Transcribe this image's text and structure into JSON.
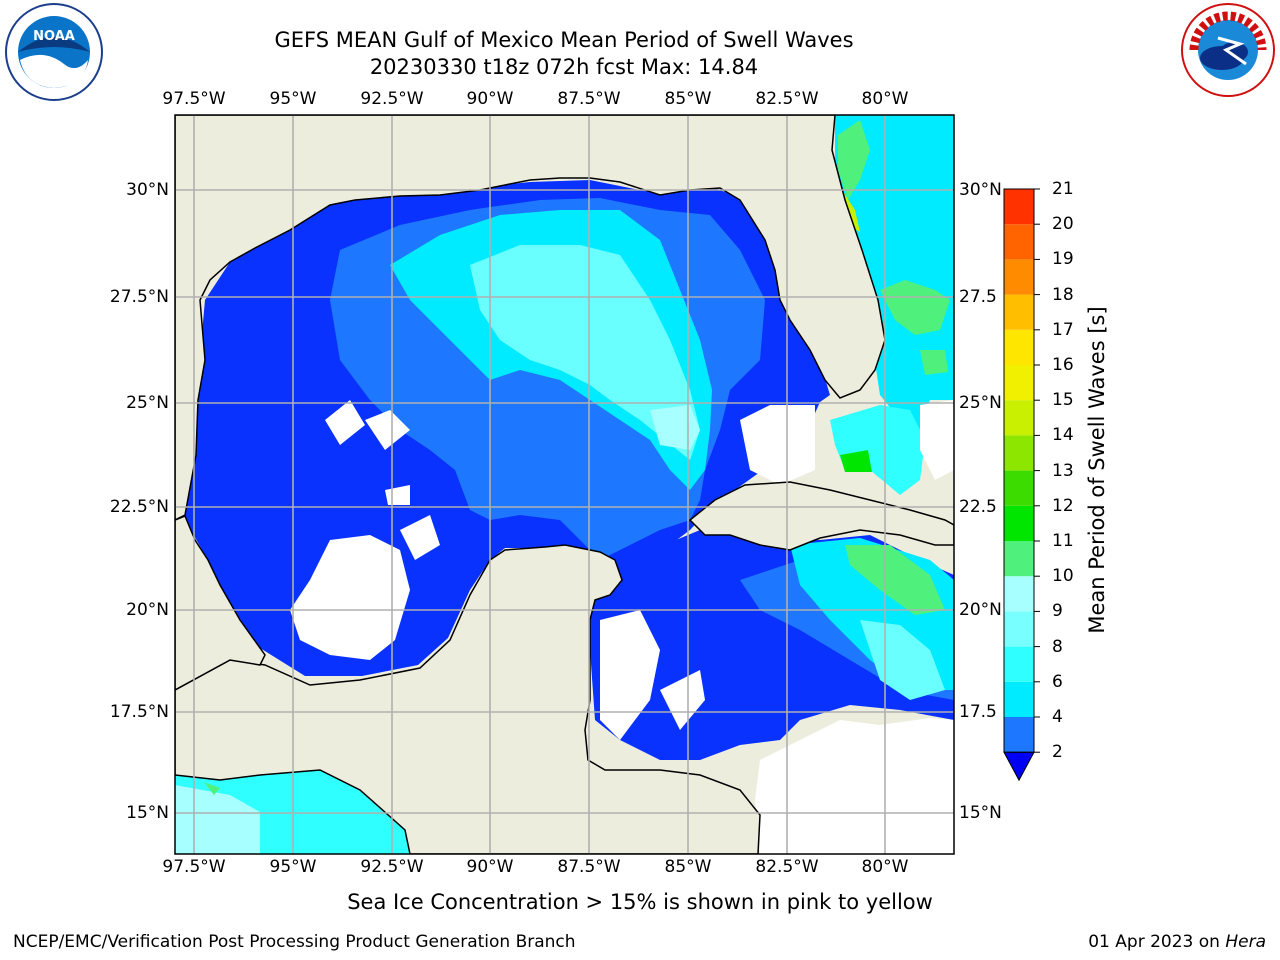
{
  "title": "GEFS MEAN Gulf of Mexico Mean Period of Swell Waves",
  "subtitle": "20230330 t18z 072h fcst   Max: 14.84",
  "lon_labels": [
    "97.5°W",
    "95°W",
    "92.5°W",
    "90°W",
    "87.5°W",
    "85°W",
    "82.5°W",
    "80°W"
  ],
  "lat_labels_left": [
    "30°N",
    "27.5°N",
    "25°N",
    "22.5°N",
    "20°N",
    "17.5°N",
    "15°N"
  ],
  "lat_labels_right": [
    "30°N",
    "27.5",
    "25°N",
    "22.5",
    "20°N",
    "17.5",
    "15°N"
  ],
  "colorbar": {
    "title": "Mean Period of Swell Waves [s]",
    "ticks": [
      "2",
      "4",
      "6",
      "8",
      "9",
      "10",
      "11",
      "12",
      "13",
      "14",
      "15",
      "16",
      "17",
      "18",
      "19",
      "20",
      "21"
    ],
    "colors": [
      "#0a32ff",
      "#1e78ff",
      "#00ebff",
      "#30ffff",
      "#78ffff",
      "#a8ffff",
      "#50f07c",
      "#00e600",
      "#3cdc00",
      "#8ce600",
      "#c8f000",
      "#f0f000",
      "#ffe600",
      "#ffbe00",
      "#ff8c00",
      "#ff6400",
      "#ff3200",
      "#fa0000"
    ],
    "extend_color": "#0000f5"
  },
  "map": {
    "land_color": "#ededde",
    "ocean_low_color": "#0000f5"
  },
  "note": "Sea Ice Concentration > 15% is shown in pink to yellow",
  "footer_left": "NCEP/EMC/Verification Post Processing Product Generation Branch",
  "footer_right_date": "01 Apr 2023 on ",
  "footer_right_host": "Hera",
  "logos": {
    "noaa_text": "NOAA",
    "nws_text": "NATIONAL WEATHER SERVICE"
  }
}
